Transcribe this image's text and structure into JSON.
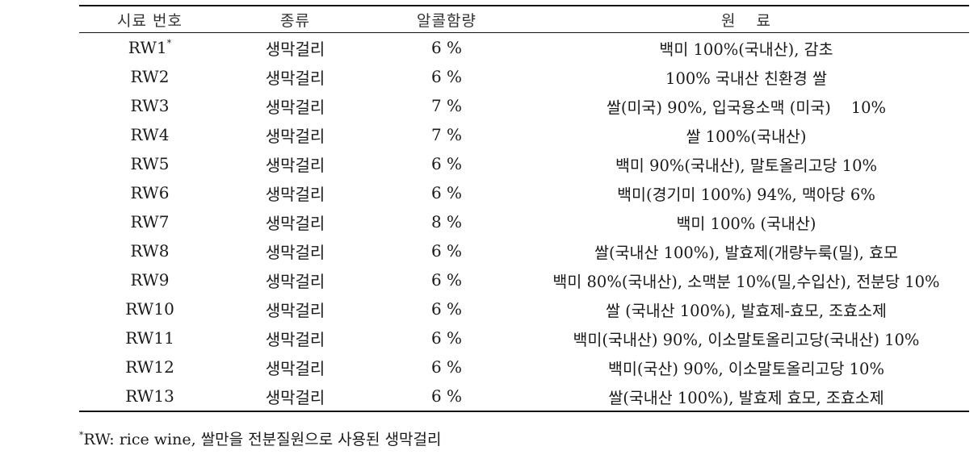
{
  "table": {
    "headers": {
      "id": "시료 번호",
      "type": "종류",
      "alcohol": "알콜함량",
      "material": "원 료"
    },
    "rows": [
      {
        "id": "RW1",
        "mark": "*",
        "type": "생막걸리",
        "alcohol": "6 %",
        "material": "백미 100%(국내산), 감초"
      },
      {
        "id": "RW2",
        "mark": "",
        "type": "생막걸리",
        "alcohol": "6 %",
        "material": "100% 국내산 친환경 쌀"
      },
      {
        "id": "RW3",
        "mark": "",
        "type": "생막걸리",
        "alcohol": "7 %",
        "material": "쌀(미국) 90%, 입국용소맥 (미국)    10%"
      },
      {
        "id": "RW4",
        "mark": "",
        "type": "생막걸리",
        "alcohol": "7 %",
        "material": "쌀 100%(국내산)"
      },
      {
        "id": "RW5",
        "mark": "",
        "type": "생막걸리",
        "alcohol": "6 %",
        "material": "백미 90%(국내산), 말토올리고당 10%"
      },
      {
        "id": "RW6",
        "mark": "",
        "type": "생막걸리",
        "alcohol": "6 %",
        "material": "백미(경기미 100%) 94%, 맥아당 6%"
      },
      {
        "id": "RW7",
        "mark": "",
        "type": "생막걸리",
        "alcohol": "8 %",
        "material": "백미 100% (국내산)"
      },
      {
        "id": "RW8",
        "mark": "",
        "type": "생막걸리",
        "alcohol": "6 %",
        "material": "쌀(국내산 100%), 발효제(개량누룩(밀), 효모"
      },
      {
        "id": "RW9",
        "mark": "",
        "type": "생막걸리",
        "alcohol": "6 %",
        "material": "백미 80%(국내산), 소맥분 10%(밀,수입산), 전분당 10%"
      },
      {
        "id": "RW10",
        "mark": "",
        "type": "생막걸리",
        "alcohol": "6 %",
        "material": "쌀 (국내산 100%), 발효제-효모, 조효소제"
      },
      {
        "id": "RW11",
        "mark": "",
        "type": "생막걸리",
        "alcohol": "6 %",
        "material": "백미(국내산) 90%, 이소말토올리고당(국내산) 10%"
      },
      {
        "id": "RW12",
        "mark": "",
        "type": "생막걸리",
        "alcohol": "6 %",
        "material": "백미(국산) 90%, 이소말토올리고당 10%"
      },
      {
        "id": "RW13",
        "mark": "",
        "type": "생막걸리",
        "alcohol": "6 %",
        "material": "쌀(국내산 100%), 발효제 효모, 조효소제"
      }
    ]
  },
  "footnote": {
    "mark": "*",
    "text": "RW: rice wine, 쌀만을 전분질원으로 사용된 생막걸리"
  }
}
